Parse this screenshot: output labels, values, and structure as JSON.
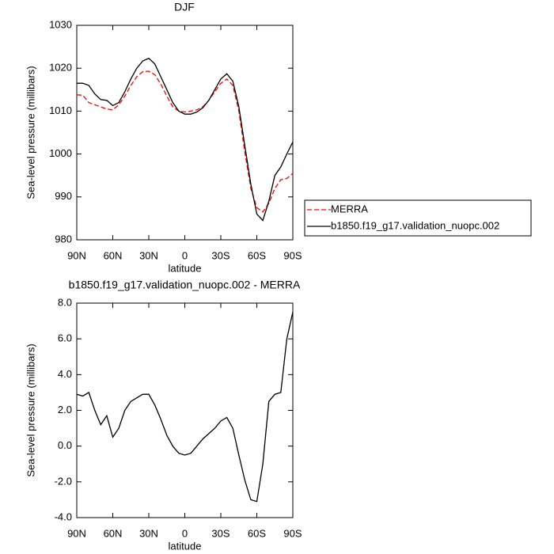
{
  "chart_data": [
    {
      "type": "line",
      "title": "DJF",
      "xlabel": "latitude",
      "ylabel": "Sea-level pressure (millibars)",
      "x": [
        90,
        85,
        80,
        75,
        70,
        65,
        60,
        55,
        50,
        45,
        40,
        35,
        30,
        25,
        20,
        15,
        10,
        5,
        0,
        -5,
        -10,
        -15,
        -20,
        -25,
        -30,
        -35,
        -40,
        -45,
        -50,
        -55,
        -60,
        -65,
        -70,
        -75,
        -80,
        -85,
        -90
      ],
      "xlim": [
        90,
        -90
      ],
      "xticks": [
        {
          "value": 90,
          "label": "90N"
        },
        {
          "value": 60,
          "label": "60N"
        },
        {
          "value": 30,
          "label": "30N"
        },
        0,
        {
          "value": -30,
          "label": "30S"
        },
        {
          "value": -60,
          "label": "60S"
        },
        {
          "value": -90,
          "label": "90S"
        }
      ],
      "ylim": [
        980,
        1030
      ],
      "yticks": [
        980,
        990,
        1000,
        1010,
        1020,
        1030
      ],
      "legend": "right",
      "series": [
        {
          "name": "MERRA",
          "color": "#ff0000",
          "style": "dashed",
          "values": [
            1013.8,
            1013.7,
            1012,
            1011.5,
            1011,
            1010.5,
            1010.3,
            1011.5,
            1013.5,
            1016,
            1018,
            1019.2,
            1019.3,
            1018.5,
            1016.3,
            1013.5,
            1011,
            1010,
            1009.8,
            1010,
            1010.3,
            1011,
            1012.5,
            1014.5,
            1016.5,
            1017.5,
            1016,
            1010,
            1000.5,
            992,
            987.5,
            986.5,
            988.5,
            992,
            994,
            994.3,
            995.5
          ]
        },
        {
          "name": "b1850.f19_g17.validation_nuopc.002",
          "color": "#000000",
          "style": "solid",
          "values": [
            1016.5,
            1016.5,
            1016,
            1014,
            1012.7,
            1012.5,
            1011.3,
            1012,
            1014.5,
            1017.5,
            1020,
            1021.7,
            1022.3,
            1021,
            1018,
            1015,
            1012,
            1010,
            1009.3,
            1009.3,
            1009.8,
            1010.8,
            1012.5,
            1015,
            1017.5,
            1018.7,
            1017,
            1011,
            1002,
            993,
            986,
            984.5,
            989,
            995,
            997,
            1000,
            1002.8
          ]
        }
      ]
    },
    {
      "type": "line",
      "title": "b1850.f19_g17.validation_nuopc.002 - MERRA",
      "xlabel": "latitude",
      "ylabel": "Sea-level pressure (millibars)",
      "x": [
        90,
        85,
        80,
        75,
        70,
        65,
        60,
        55,
        50,
        45,
        40,
        35,
        30,
        25,
        20,
        15,
        10,
        5,
        0,
        -5,
        -10,
        -15,
        -20,
        -25,
        -30,
        -35,
        -40,
        -45,
        -50,
        -55,
        -60,
        -65,
        -70,
        -75,
        -80,
        -85,
        -90
      ],
      "xlim": [
        90,
        -90
      ],
      "xticks": [
        {
          "value": 90,
          "label": "90N"
        },
        {
          "value": 60,
          "label": "60N"
        },
        {
          "value": 30,
          "label": "30N"
        },
        0,
        {
          "value": -30,
          "label": "30S"
        },
        {
          "value": -60,
          "label": "60S"
        },
        {
          "value": -90,
          "label": "90S"
        }
      ],
      "ylim": [
        -4,
        8
      ],
      "yticks": [
        {
          "value": -4,
          "label": "-4.0"
        },
        {
          "value": -2,
          "label": "-2.0"
        },
        {
          "value": 0,
          "label": "0.0"
        },
        {
          "value": 2,
          "label": "2.0"
        },
        {
          "value": 4,
          "label": "4.0"
        },
        {
          "value": 6,
          "label": "6.0"
        },
        {
          "value": 8,
          "label": "8.0"
        }
      ],
      "color": "#000000",
      "values": [
        2.9,
        2.8,
        3.0,
        2.0,
        1.2,
        1.7,
        0.5,
        1.0,
        2.0,
        2.5,
        2.7,
        2.9,
        2.9,
        2.3,
        1.5,
        0.6,
        0.0,
        -0.4,
        -0.5,
        -0.4,
        0.0,
        0.4,
        0.7,
        1.0,
        1.4,
        1.6,
        1.0,
        -0.5,
        -1.9,
        -3.0,
        -3.1,
        -1.0,
        2.5,
        2.9,
        3.0,
        6.0,
        7.5
      ]
    }
  ]
}
